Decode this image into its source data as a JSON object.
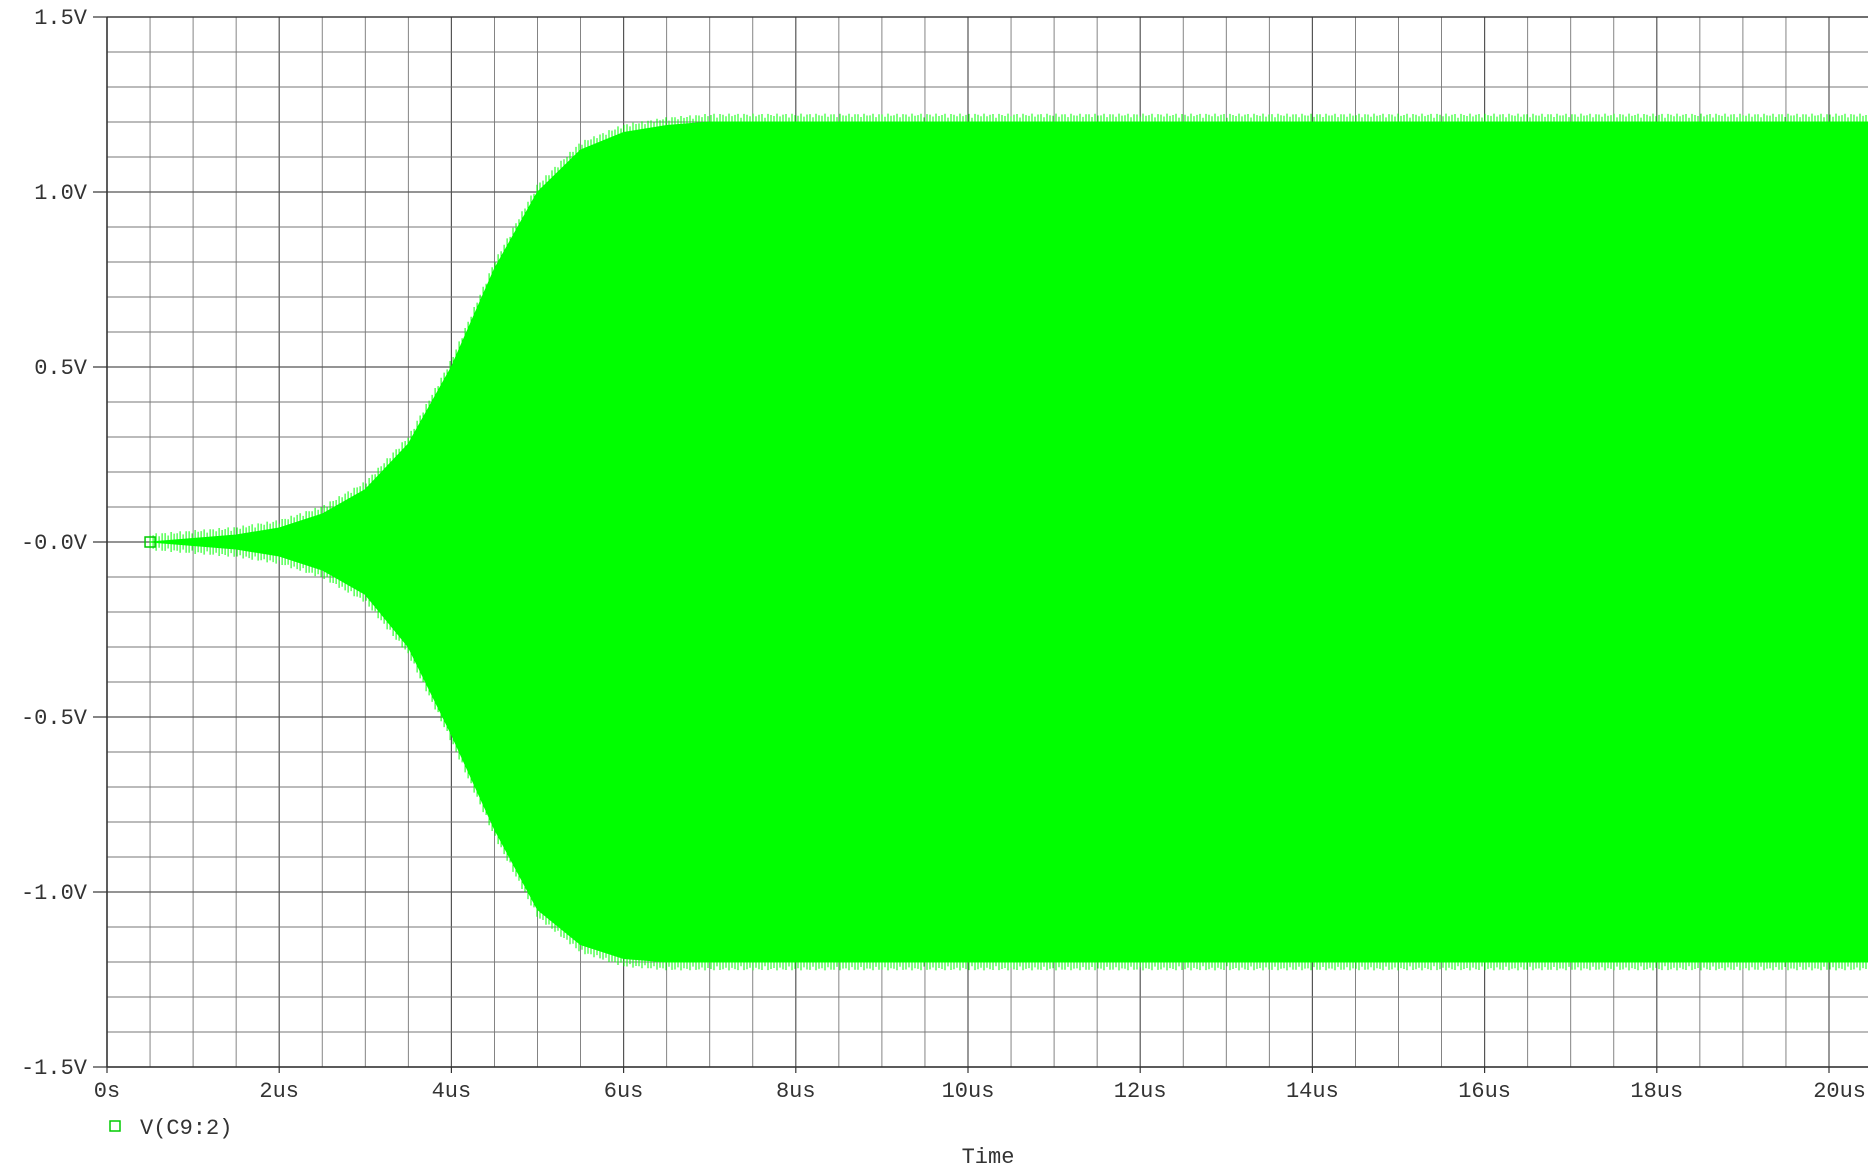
{
  "chart_data": {
    "type": "area",
    "xlabel": "Time",
    "ylabel": "",
    "xlim": [
      0,
      20
    ],
    "ylim": [
      -1.5,
      1.5
    ],
    "x_unit": "us",
    "y_unit": "V",
    "grid": true,
    "legend_position": "bottom-left",
    "x_ticks": [
      {
        "value": 0,
        "label": "0s"
      },
      {
        "value": 2,
        "label": "2us"
      },
      {
        "value": 4,
        "label": "4us"
      },
      {
        "value": 6,
        "label": "6us"
      },
      {
        "value": 8,
        "label": "8us"
      },
      {
        "value": 10,
        "label": "10us"
      },
      {
        "value": 12,
        "label": "12us"
      },
      {
        "value": 14,
        "label": "14us"
      },
      {
        "value": 16,
        "label": "16us"
      },
      {
        "value": 18,
        "label": "18us"
      },
      {
        "value": 20,
        "label": "20us"
      }
    ],
    "y_ticks": [
      {
        "value": 1.5,
        "label": "1.5V"
      },
      {
        "value": 1.0,
        "label": "1.0V"
      },
      {
        "value": 0.5,
        "label": "0.5V"
      },
      {
        "value": 0.0,
        "label": "-0.0V"
      },
      {
        "value": -0.5,
        "label": "-0.5V"
      },
      {
        "value": -1.0,
        "label": "-1.0V"
      },
      {
        "value": -1.5,
        "label": "-1.5V"
      }
    ],
    "series": [
      {
        "name": "V(C9:2)",
        "color": "#00ff00",
        "marker": "open-square",
        "envelope": {
          "x": [
            0.5,
            1.0,
            1.5,
            2.0,
            2.5,
            3.0,
            3.5,
            4.0,
            4.5,
            5.0,
            5.5,
            6.0,
            6.5,
            7.0,
            8.0,
            10.0,
            12.0,
            14.0,
            16.0,
            18.0,
            20.0
          ],
          "upper": [
            0.0,
            0.01,
            0.02,
            0.04,
            0.08,
            0.15,
            0.28,
            0.5,
            0.78,
            1.0,
            1.12,
            1.17,
            1.19,
            1.2,
            1.2,
            1.2,
            1.2,
            1.2,
            1.2,
            1.2,
            1.2
          ],
          "lower": [
            0.0,
            -0.01,
            -0.02,
            -0.04,
            -0.08,
            -0.15,
            -0.3,
            -0.55,
            -0.82,
            -1.05,
            -1.15,
            -1.19,
            -1.2,
            -1.2,
            -1.2,
            -1.2,
            -1.2,
            -1.2,
            -1.2,
            -1.2,
            -1.2
          ]
        }
      }
    ]
  }
}
